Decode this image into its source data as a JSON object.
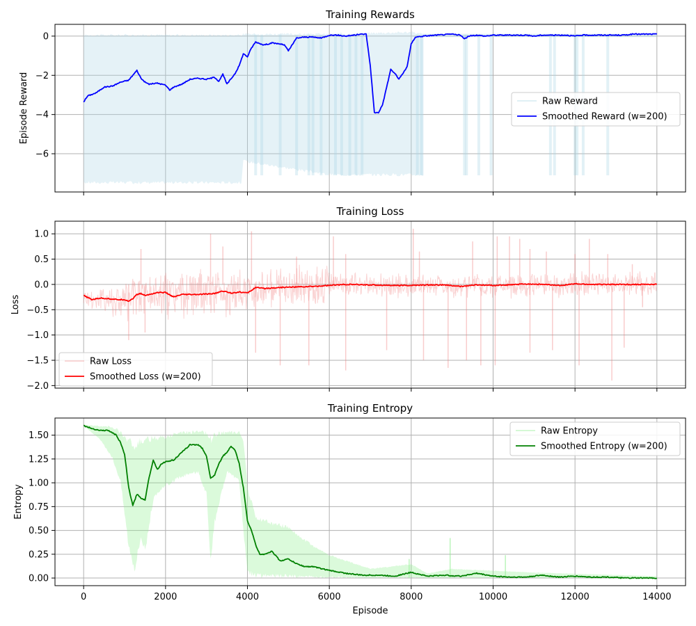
{
  "chart_data": [
    {
      "type": "line",
      "title": "Training Rewards",
      "xlabel": "",
      "ylabel": "Episode Reward",
      "xlim": [
        -700,
        14700
      ],
      "ylim": [
        -7.95,
        0.6
      ],
      "xticks": [
        0,
        2000,
        4000,
        6000,
        8000,
        10000,
        12000,
        14000
      ],
      "yticks": [
        -6,
        -4,
        -2,
        0
      ],
      "grid": true,
      "legend_position": "center-right",
      "raw": {
        "name": "Raw Reward",
        "color": "#add8e6",
        "band": [
          {
            "x": 0,
            "lo": -7.5,
            "hi": 0.05
          },
          {
            "x": 3850,
            "lo": -7.5,
            "hi": 0.05
          },
          {
            "x": 3900,
            "lo": -6.4,
            "hi": 0.1
          },
          {
            "x": 6000,
            "lo": -7.1,
            "hi": 0.1
          },
          {
            "x": 6950,
            "lo": -7.1,
            "hi": 0.15
          },
          {
            "x": 8000,
            "lo": -7.1,
            "hi": 0.2
          },
          {
            "x": 8300,
            "lo": -7.1,
            "hi": 0.1
          }
        ],
        "spikes": [
          4200,
          4350,
          4800,
          5200,
          5500,
          5600,
          5800,
          6150,
          6300,
          6500,
          6650,
          6800,
          8150,
          8250,
          9300,
          9350,
          9650,
          9950,
          11400,
          11500,
          12000,
          12050,
          12200,
          12800
        ],
        "spike_min": -7.1
      },
      "series": [
        {
          "name": "Smoothed Reward (w=200)",
          "color": "#0000ff",
          "x": [
            0,
            100,
            300,
            500,
            700,
            900,
            1100,
            1200,
            1300,
            1400,
            1500,
            1600,
            1800,
            2000,
            2100,
            2200,
            2400,
            2600,
            2800,
            3000,
            3200,
            3300,
            3400,
            3500,
            3700,
            3800,
            3900,
            4000,
            4100,
            4200,
            4400,
            4600,
            4800,
            4900,
            5000,
            5200,
            5400,
            5600,
            5800,
            6000,
            6200,
            6400,
            6600,
            6800,
            6900,
            7000,
            7100,
            7200,
            7300,
            7400,
            7500,
            7600,
            7700,
            7800,
            7900,
            8000,
            8100,
            8300,
            8600,
            9000,
            9200,
            9300,
            9400,
            9600,
            9800,
            10000,
            10200,
            10400,
            10600,
            10800,
            11000,
            11200,
            11400,
            11600,
            11800,
            12000,
            12200,
            12400,
            12600,
            12800,
            13000,
            13200,
            13400,
            13600,
            13800,
            14000
          ],
          "y": [
            -3.35,
            -3.05,
            -2.9,
            -2.6,
            -2.55,
            -2.35,
            -2.25,
            -2.0,
            -1.75,
            -2.15,
            -2.35,
            -2.45,
            -2.4,
            -2.5,
            -2.75,
            -2.6,
            -2.45,
            -2.2,
            -2.15,
            -2.2,
            -2.1,
            -2.3,
            -1.95,
            -2.45,
            -1.9,
            -1.5,
            -0.9,
            -1.05,
            -0.6,
            -0.3,
            -0.45,
            -0.35,
            -0.4,
            -0.45,
            -0.75,
            -0.1,
            -0.05,
            -0.05,
            -0.1,
            0.05,
            0.05,
            0.0,
            0.05,
            0.1,
            0.1,
            -1.5,
            -3.9,
            -3.9,
            -3.5,
            -2.6,
            -1.7,
            -1.9,
            -2.2,
            -1.9,
            -1.55,
            -0.4,
            -0.05,
            0.0,
            0.05,
            0.1,
            0.05,
            -0.15,
            0.0,
            0.05,
            0.0,
            0.05,
            0.05,
            0.05,
            0.05,
            0.05,
            0.0,
            0.05,
            0.05,
            0.05,
            0.05,
            0.0,
            0.05,
            0.05,
            0.05,
            0.05,
            0.05,
            0.05,
            0.1,
            0.1,
            0.1,
            0.1
          ]
        }
      ]
    },
    {
      "type": "line",
      "title": "Training Loss",
      "xlabel": "",
      "ylabel": "Loss",
      "xlim": [
        -700,
        14700
      ],
      "ylim": [
        -2.05,
        1.25
      ],
      "xticks": [
        0,
        2000,
        4000,
        6000,
        8000,
        10000,
        12000,
        14000
      ],
      "yticks": [
        -2.0,
        -1.5,
        -1.0,
        -0.5,
        0.0,
        0.5,
        1.0
      ],
      "grid": true,
      "legend_position": "bottom-left",
      "raw": {
        "name": "Raw Loss",
        "color": "#f08080",
        "spikes_up": [
          {
            "x": 1400,
            "v": 0.7
          },
          {
            "x": 3100,
            "v": 1.0
          },
          {
            "x": 3400,
            "v": 0.75
          },
          {
            "x": 4100,
            "v": 1.05
          },
          {
            "x": 5200,
            "v": 0.55
          },
          {
            "x": 6100,
            "v": 0.95
          },
          {
            "x": 6400,
            "v": 0.6
          },
          {
            "x": 8050,
            "v": 1.1
          },
          {
            "x": 8200,
            "v": 0.65
          },
          {
            "x": 9500,
            "v": 0.85
          },
          {
            "x": 10100,
            "v": 0.95
          },
          {
            "x": 10400,
            "v": 0.95
          },
          {
            "x": 10650,
            "v": 0.9
          },
          {
            "x": 10900,
            "v": 0.7
          },
          {
            "x": 11300,
            "v": 0.65
          },
          {
            "x": 12000,
            "v": 0.6
          },
          {
            "x": 12350,
            "v": 0.9
          },
          {
            "x": 12800,
            "v": 0.6
          },
          {
            "x": 13400,
            "v": 0.4
          }
        ],
        "spikes_down": [
          {
            "x": 1100,
            "v": -1.1
          },
          {
            "x": 1500,
            "v": -0.95
          },
          {
            "x": 4200,
            "v": -1.35
          },
          {
            "x": 4800,
            "v": -1.6
          },
          {
            "x": 5500,
            "v": -1.6
          },
          {
            "x": 6400,
            "v": -1.7
          },
          {
            "x": 7400,
            "v": -1.3
          },
          {
            "x": 8300,
            "v": -1.5
          },
          {
            "x": 8900,
            "v": -1.65
          },
          {
            "x": 9350,
            "v": -1.5
          },
          {
            "x": 9700,
            "v": -1.6
          },
          {
            "x": 10050,
            "v": -1.6
          },
          {
            "x": 10900,
            "v": -1.35
          },
          {
            "x": 11450,
            "v": -1.3
          },
          {
            "x": 12100,
            "v": -1.6
          },
          {
            "x": 12900,
            "v": -1.9
          },
          {
            "x": 13200,
            "v": -1.25
          },
          {
            "x": 13650,
            "v": -0.45
          }
        ]
      },
      "series": [
        {
          "name": "Smoothed Loss (w=200)",
          "color": "#ff0000",
          "x": [
            0,
            200,
            400,
            600,
            800,
            1000,
            1100,
            1200,
            1300,
            1400,
            1500,
            1600,
            1800,
            2000,
            2200,
            2400,
            2800,
            3200,
            3400,
            3600,
            3800,
            4000,
            4200,
            4400,
            4800,
            5200,
            5600,
            6000,
            6400,
            7000,
            7600,
            8000,
            8400,
            8800,
            9200,
            9600,
            10000,
            10400,
            10800,
            11200,
            11600,
            12000,
            12400,
            12800,
            13200,
            13600,
            14000
          ],
          "y": [
            -0.22,
            -0.3,
            -0.27,
            -0.28,
            -0.3,
            -0.3,
            -0.33,
            -0.28,
            -0.2,
            -0.18,
            -0.22,
            -0.2,
            -0.16,
            -0.16,
            -0.25,
            -0.2,
            -0.2,
            -0.18,
            -0.13,
            -0.17,
            -0.15,
            -0.17,
            -0.06,
            -0.08,
            -0.06,
            -0.05,
            -0.04,
            -0.02,
            0.0,
            -0.01,
            -0.02,
            -0.02,
            -0.01,
            -0.01,
            -0.04,
            -0.01,
            -0.02,
            -0.01,
            0.01,
            0.0,
            -0.02,
            0.01,
            0.0,
            0.0,
            0.0,
            0.0,
            0.0
          ]
        }
      ]
    },
    {
      "type": "line",
      "title": "Training Entropy",
      "xlabel": "Episode",
      "ylabel": "Entropy",
      "xlim": [
        -700,
        14700
      ],
      "ylim": [
        -0.08,
        1.68
      ],
      "xticks": [
        0,
        2000,
        4000,
        6000,
        8000,
        10000,
        12000,
        14000
      ],
      "yticks": [
        0.0,
        0.25,
        0.5,
        0.75,
        1.0,
        1.25,
        1.5
      ],
      "grid": true,
      "legend_position": "top-right",
      "raw": {
        "name": "Raw Entropy",
        "color": "#90ee90",
        "band": [
          {
            "x": 0,
            "lo": 1.6,
            "hi": 1.61
          },
          {
            "x": 400,
            "lo": 1.45,
            "hi": 1.6
          },
          {
            "x": 700,
            "lo": 1.25,
            "hi": 1.6
          },
          {
            "x": 900,
            "lo": 1.0,
            "hi": 1.55
          },
          {
            "x": 1100,
            "lo": 0.3,
            "hi": 1.5
          },
          {
            "x": 1250,
            "lo": 0.05,
            "hi": 1.45
          },
          {
            "x": 1400,
            "lo": 0.4,
            "hi": 1.5
          },
          {
            "x": 1500,
            "lo": 0.25,
            "hi": 1.5
          },
          {
            "x": 1700,
            "lo": 0.8,
            "hi": 1.5
          },
          {
            "x": 2000,
            "lo": 0.95,
            "hi": 1.5
          },
          {
            "x": 2400,
            "lo": 1.05,
            "hi": 1.55
          },
          {
            "x": 2800,
            "lo": 1.1,
            "hi": 1.55
          },
          {
            "x": 3000,
            "lo": 0.85,
            "hi": 1.55
          },
          {
            "x": 3100,
            "lo": 0.1,
            "hi": 1.5
          },
          {
            "x": 3200,
            "lo": 0.55,
            "hi": 1.55
          },
          {
            "x": 3500,
            "lo": 1.1,
            "hi": 1.55
          },
          {
            "x": 3800,
            "lo": 1.0,
            "hi": 1.55
          },
          {
            "x": 3900,
            "lo": 0.45,
            "hi": 1.5
          },
          {
            "x": 4000,
            "lo": 0.02,
            "hi": 1.0
          },
          {
            "x": 4200,
            "lo": 0.0,
            "hi": 0.65
          },
          {
            "x": 5000,
            "lo": 0.0,
            "hi": 0.55
          },
          {
            "x": 5600,
            "lo": 0.0,
            "hi": 0.35
          },
          {
            "x": 6000,
            "lo": 0.0,
            "hi": 0.25
          },
          {
            "x": 7000,
            "lo": 0.0,
            "hi": 0.1
          },
          {
            "x": 8000,
            "lo": 0.0,
            "hi": 0.15
          },
          {
            "x": 8400,
            "lo": 0.0,
            "hi": 0.05
          },
          {
            "x": 9000,
            "lo": 0.0,
            "hi": 0.1
          },
          {
            "x": 11000,
            "lo": 0.0,
            "hi": 0.06
          },
          {
            "x": 14000,
            "lo": 0.0,
            "hi": 0.02
          }
        ],
        "spikes_up": [
          {
            "x": 7950,
            "v": 0.2
          },
          {
            "x": 8950,
            "v": 0.42
          },
          {
            "x": 10300,
            "v": 0.24
          }
        ]
      },
      "series": [
        {
          "name": "Smoothed Entropy (w=200)",
          "color": "#008000",
          "x": [
            0,
            200,
            400,
            600,
            800,
            900,
            1000,
            1100,
            1200,
            1300,
            1400,
            1500,
            1600,
            1700,
            1800,
            1900,
            2000,
            2200,
            2400,
            2600,
            2800,
            2900,
            3000,
            3100,
            3200,
            3300,
            3400,
            3500,
            3600,
            3700,
            3800,
            3900,
            4000,
            4100,
            4200,
            4300,
            4400,
            4600,
            4800,
            5000,
            5200,
            5400,
            5600,
            5800,
            6000,
            6400,
            6800,
            7200,
            7600,
            8000,
            8400,
            8800,
            9200,
            9600,
            10000,
            10400,
            10800,
            11200,
            11600,
            12000,
            12400,
            12800,
            13200,
            13600,
            14000
          ],
          "y": [
            1.6,
            1.57,
            1.55,
            1.55,
            1.5,
            1.42,
            1.3,
            0.95,
            0.76,
            0.88,
            0.84,
            0.82,
            1.06,
            1.24,
            1.14,
            1.2,
            1.22,
            1.24,
            1.32,
            1.4,
            1.4,
            1.36,
            1.28,
            1.05,
            1.08,
            1.2,
            1.28,
            1.32,
            1.38,
            1.34,
            1.2,
            0.95,
            0.6,
            0.5,
            0.35,
            0.25,
            0.25,
            0.28,
            0.18,
            0.2,
            0.15,
            0.12,
            0.12,
            0.1,
            0.08,
            0.05,
            0.03,
            0.03,
            0.02,
            0.06,
            0.02,
            0.03,
            0.02,
            0.05,
            0.02,
            0.01,
            0.01,
            0.03,
            0.01,
            0.02,
            0.01,
            0.01,
            0.0,
            0.0,
            0.0
          ]
        }
      ]
    }
  ]
}
